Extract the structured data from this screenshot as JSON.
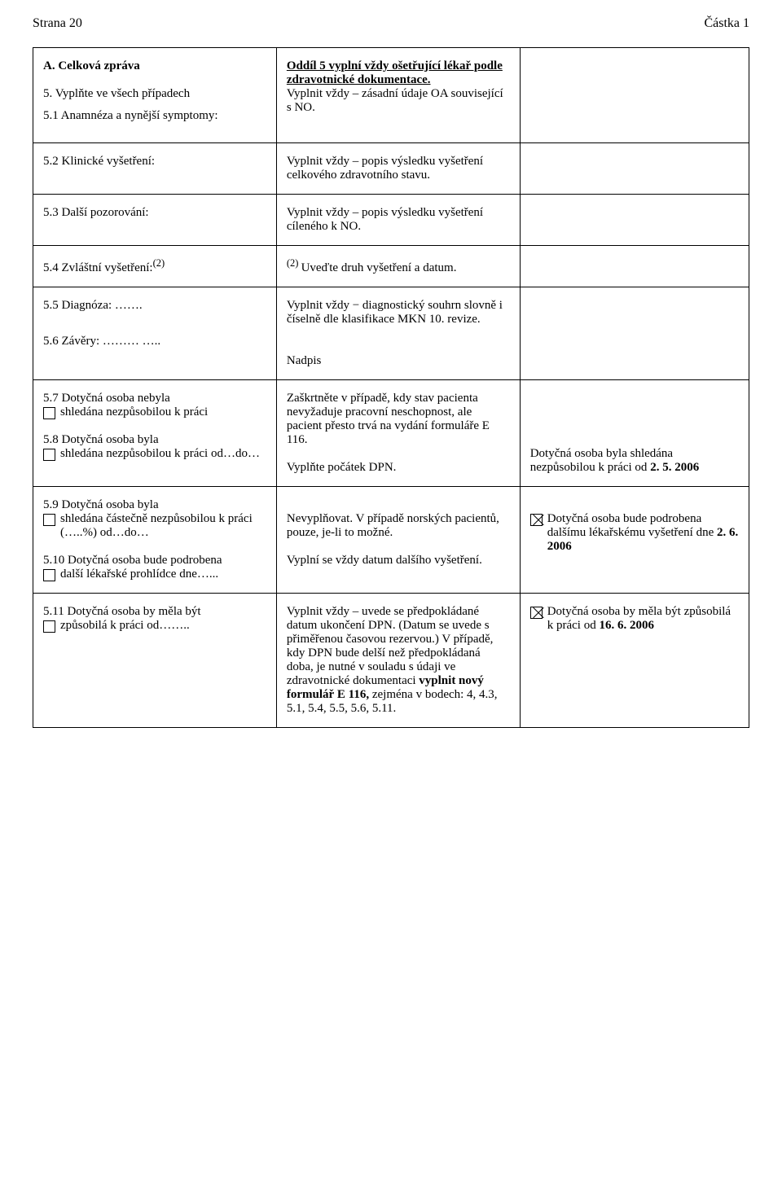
{
  "header": {
    "left": "Strana 20",
    "right": "Částka 1"
  },
  "rows": {
    "r1": {
      "left_title": "A.  Celková zpráva",
      "left_5": "5.   Vyplňte ve všech případech",
      "left_51": "5.1 Anamnéza a nynější symptomy:",
      "mid_title": "Oddíl 5 vyplní vždy ošetřující lékař podle zdravotnické dokumentace.",
      "mid_text": "Vyplnit vždy – zásadní údaje OA související s NO."
    },
    "r2": {
      "left": "5.2 Klinické vyšetření:",
      "mid": "Vyplnit vždy – popis výsledku vyšetření celkového zdravotního stavu."
    },
    "r3": {
      "left": "5.3 Další pozorování:",
      "mid": "Vyplnit vždy – popis výsledku vyšetření cíleného k NO."
    },
    "r4": {
      "left": "5.4 Zvláštní vyšetření:",
      "left_sup": "(2)",
      "mid_sup": "(2) ",
      "mid": "Uveďte druh vyšetření a datum."
    },
    "r5": {
      "left_55": "5.5 Diagnóza: …….",
      "left_56": "5.6 Závěry: ……… …..",
      "mid": "Vyplnit vždy − diagnostický souhrn slovně i číselně dle klasifikace MKN 10. revize.",
      "mid_nadpis": "Nadpis"
    },
    "r6": {
      "i57_head": "5.7 Dotyčná osoba nebyla",
      "i57_cont": "shledána nezpůsobilou k práci",
      "i58_head": "5.8 Dotyčná osoba byla",
      "i58_cont": "shledána nezpůsobilou k práci od…do…",
      "mid_a": "Zaškrtněte v případě, kdy stav pacienta nevyžaduje pracovní neschopnost, ale pacient přesto trvá na vydání formuláře E 116.",
      "mid_b": "Vyplňte počátek DPN.",
      "right_text": "Dotyčná osoba byla shledána nezpůsobilou k práci od ",
      "right_date": "2. 5. 2006"
    },
    "r7": {
      "i59_head": "5.9 Dotyčná osoba byla",
      "i59_cont": "shledána částečně nezpůsobilou k práci (…..%) od…do…",
      "i510_head": "5.10 Dotyčná osoba bude podrobena",
      "i510_cont": "další lékařské prohlídce dne…...",
      "mid_a": "Nevyplňovat. V případě norských pacientů, pouze, je-li to možné.",
      "mid_b": "Vyplní se vždy datum dalšího vyšetření.",
      "right_text": "Dotyčná osoba bude podrobena dalšímu lékařskému vyšetření dne ",
      "right_date": "2. 6. 2006"
    },
    "r8": {
      "i511_head": "5.11 Dotyčná osoba by měla být",
      "i511_cont": "způsobilá k práci od……..",
      "mid_a": "Vyplnit vždy – uvede se předpokládané datum ukončení DPN. (Datum se uvede s přiměřenou časovou rezervou.) V případě, kdy DPN bude delší než předpokládaná doba, je nutné v souladu s údaji ve zdravotnické dokumentaci ",
      "mid_bold": "vyplnit nový formulář E 116, ",
      "mid_b": "zejména v bodech: 4, 4.3, 5.1, 5.4, 5.5, 5.6, 5.11.",
      "right_text": "Dotyčná osoba by měla být způsobilá k práci od ",
      "right_date": "16. 6. 2006"
    }
  }
}
